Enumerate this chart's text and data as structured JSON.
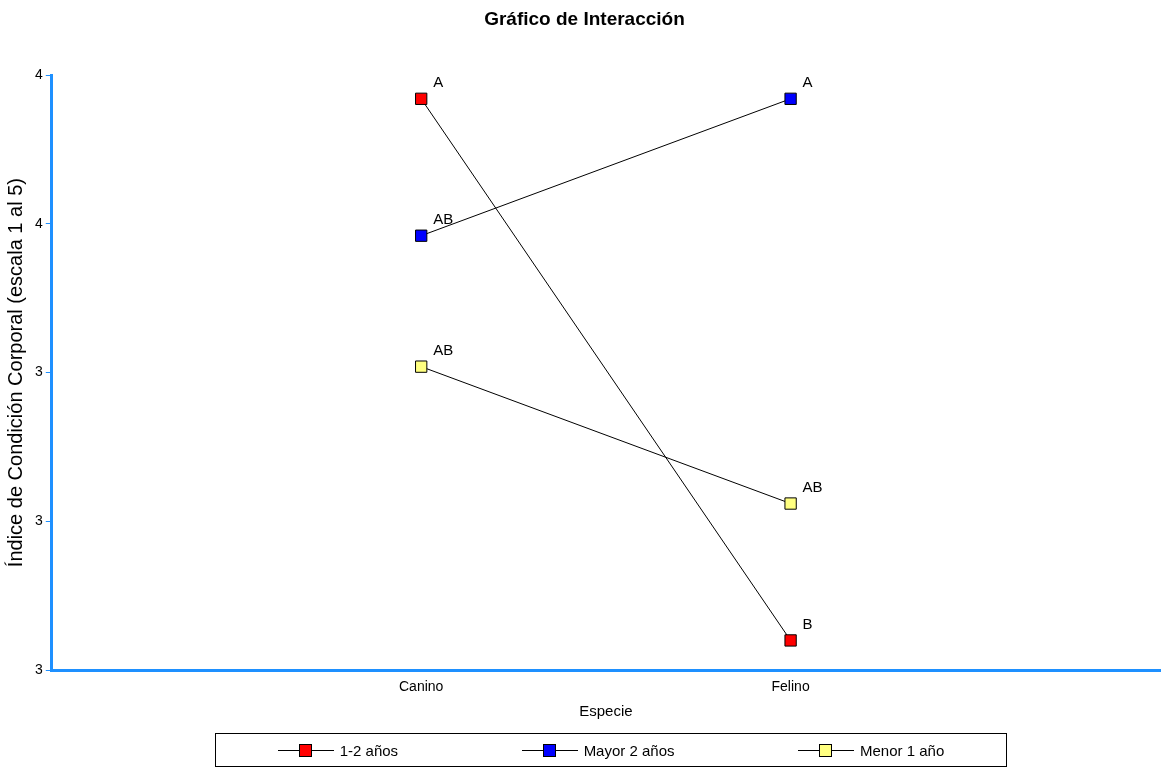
{
  "chart_data": {
    "type": "line",
    "title": "Gráfico de Interacción",
    "xlabel": "Especie",
    "ylabel": "Índice de Condición Corporal (escala 1 al 5)",
    "categories": [
      "Canino",
      "Felino"
    ],
    "series": [
      {
        "name": "1-2 años",
        "color": "#ff0000",
        "values": [
          3.96,
          3.05
        ]
      },
      {
        "name": "Mayor 2 años",
        "color": "#0000ff",
        "values": [
          3.73,
          3.96
        ]
      },
      {
        "name": "Menor 1 año",
        "color": "#ffff80",
        "values": [
          3.51,
          3.28
        ]
      }
    ],
    "ylim": [
      3,
      4
    ],
    "yticks": [
      {
        "value": 3,
        "label": "3"
      },
      {
        "value": 3.25,
        "label": "3"
      },
      {
        "value": 3.5,
        "label": "3"
      },
      {
        "value": 3.75,
        "label": "4"
      },
      {
        "value": 4,
        "label": "4"
      }
    ],
    "annotations": [
      {
        "text": "A",
        "x": "Canino",
        "y": 3.96
      },
      {
        "text": "B",
        "x": "Felino",
        "y": 3.05
      },
      {
        "text": "AB",
        "x": "Canino",
        "y": 3.73
      },
      {
        "text": "A",
        "x": "Felino",
        "y": 3.96
      },
      {
        "text": "AB",
        "x": "Canino",
        "y": 3.51
      },
      {
        "text": "AB",
        "x": "Felino",
        "y": 3.28
      }
    ],
    "grid": false,
    "legend": "bottom",
    "marker": "square",
    "line_style": "solid"
  }
}
